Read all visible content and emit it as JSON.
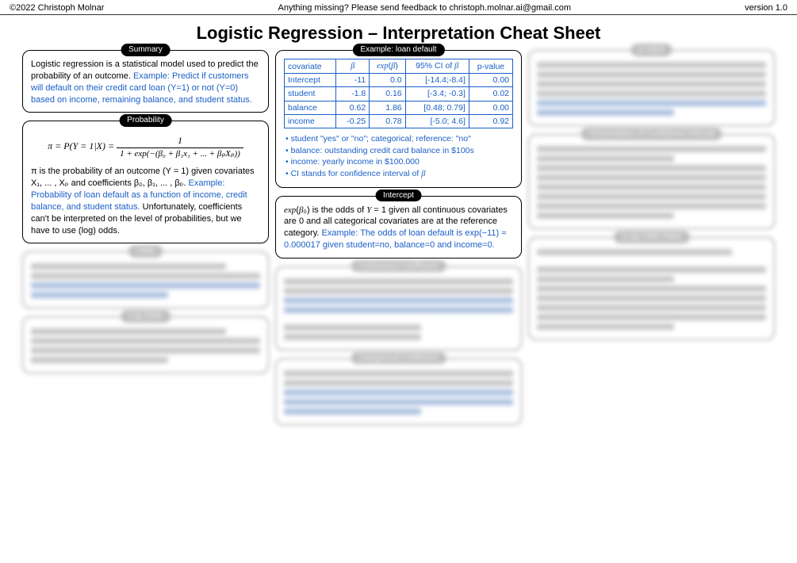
{
  "header": {
    "copyright": "©2022 Christoph Molnar",
    "feedback": "Anything missing? Please send feedback to christoph.molnar.ai@gmail.com",
    "version": "version 1.0"
  },
  "title": "Logistic Regression – Interpretation Cheat Sheet",
  "summary": {
    "label": "Summary",
    "text": "Logistic regression is a statistical model used to predict the probability of an outcome. ",
    "example": "Example: Predict if customers will default on their credit card loan (Y=1) or not (Y=0) based on income, remaining balance, and student status."
  },
  "probability": {
    "label": "Probability",
    "formula_lhs": "π = P(Y = 1|X) = ",
    "formula_num": "1",
    "formula_den": "1 + exp(−(β₀ + β₁x₁ + ... + βₚXₚ))",
    "text1": "π is the probability of an outcome (Y = 1) given covariates X₁, ... , Xₚ and coefficients β₀, β₁, ... , βₚ. ",
    "example": "Example: Probability of loan default as a function of income, credit balance, and student status.",
    "text2": " Unfortunately, coefficients can't be interpreted on the level of probabilities, but we have to use (log) odds."
  },
  "loandefault": {
    "label": "Example: loan default",
    "headers": [
      "covariate",
      "β",
      "exp(β)",
      "95% CI of β",
      "p-value"
    ],
    "rows": [
      [
        "Intercept",
        "-11",
        "0.0",
        "[-14.4;-8.4]",
        "0.00"
      ],
      [
        "student",
        "-1.8",
        "0.16",
        "[-3.4; -0.3]",
        "0.02"
      ],
      [
        "balance",
        "0.62",
        "1.86",
        "[0.48; 0.79]",
        "0.00"
      ],
      [
        "income",
        "-0.25",
        "0.78",
        "[-5.0; 4.6]",
        "0.92"
      ]
    ],
    "bullets": [
      "student \"yes\" or \"no\"; categorical; reference: \"no\"",
      "balance: outstanding credit card balance in $100s",
      "income: yearly income in $100.000",
      "CI stands for confidence interval of β"
    ]
  },
  "intercept": {
    "label": "Intercept",
    "text1": "exp(β₀) is the odds of Y = 1 given all continuous covariates are 0 and all categorical covariates are at the reference category. ",
    "example": "Example: The odds of loan default is exp(−11) ≈ 0.000017 given student=no, balance=0 and income=0."
  },
  "blurred_boxes": {
    "odds": "Odds",
    "logodds": "Log Odds",
    "contcoef": "Continuous Coefficient",
    "catcoef": "Categorical Coefficient",
    "pvalue": "p-value",
    "ci": "Interpretation of Confidence Interval",
    "oddsratio": "(Log) Odds Ratio"
  }
}
